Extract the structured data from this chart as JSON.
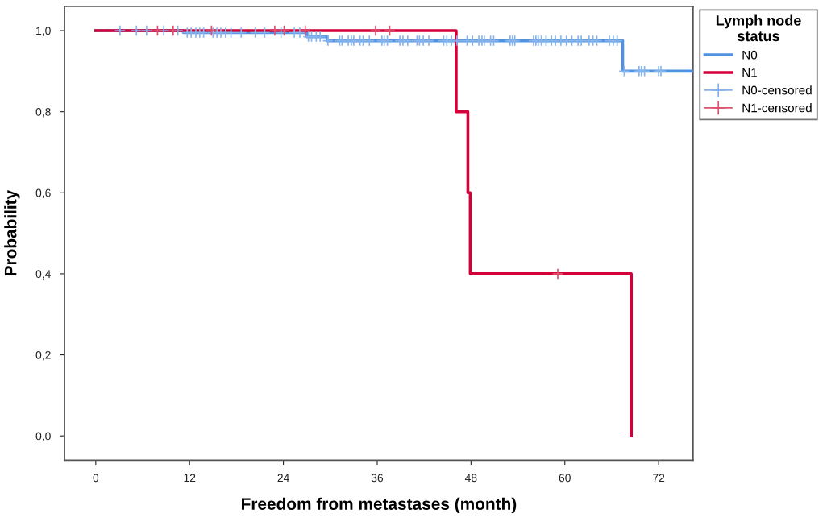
{
  "chart_data": {
    "type": "step",
    "xlabel": "Freedom from metastases (month)",
    "ylabel": "Probability",
    "legend_title": "Lymph node status",
    "xlim": [
      -4,
      76.4
    ],
    "ylim": [
      -0.06,
      1.06
    ],
    "xticks": [
      0,
      12,
      24,
      36,
      48,
      60,
      72
    ],
    "yticks": [
      {
        "value": 0,
        "label": "0,0"
      },
      {
        "value": 0.2,
        "label": "0,2"
      },
      {
        "value": 0.4,
        "label": "0,4"
      },
      {
        "value": 0.6,
        "label": "0,6"
      },
      {
        "value": 0.8,
        "label": "0,8"
      },
      {
        "value": 1,
        "label": "1,0"
      }
    ],
    "grid": false,
    "legend": "right",
    "series": [
      {
        "name": "N0",
        "color": "#5192e0",
        "x": [
          0,
          11.2,
          27,
          29.6,
          67.4,
          76.4
        ],
        "values": [
          1,
          0.995,
          0.985,
          0.975,
          0.9,
          0.9
        ]
      },
      {
        "name": "N1",
        "color": "#d4003a",
        "x": [
          0,
          46.1,
          47.6,
          47.9,
          68.5
        ],
        "values": [
          1,
          0.8,
          0.6,
          0.4,
          0
        ]
      },
      {
        "name": "N0-censored",
        "type": "scatter",
        "marker": "cross",
        "color": "#86b3ea",
        "x": [
          3.1,
          5.2,
          6.5,
          8.7,
          10.5,
          11.7,
          12.2,
          12.8,
          13.3,
          13.8,
          15.0,
          15.5,
          16.0,
          16.6,
          17.3,
          18.6,
          20.4,
          21.6,
          23.7,
          25.4,
          26.1,
          27.2,
          27.6,
          28.2,
          28.7,
          29.7,
          31.2,
          31.5,
          32.3,
          32.7,
          33.0,
          33.8,
          34.2,
          35.0,
          36.6,
          36.9,
          37.3,
          38.9,
          39.3,
          39.9,
          41.1,
          41.4,
          41.9,
          42.6,
          44.5,
          44.9,
          45.5,
          46.2,
          47.5,
          48.2,
          49.0,
          49.4,
          49.7,
          50.5,
          50.9,
          53.0,
          53.3,
          53.6,
          56.0,
          56.3,
          56.6,
          57.0,
          57.6,
          58.3,
          58.8,
          59.5,
          60.2,
          60.9,
          61.7,
          62.1,
          63.1,
          63.6,
          64.1,
          65.7,
          66.2,
          66.7,
          67.6,
          69.5,
          69.8,
          70.2,
          72.0,
          72.3
        ],
        "values": [
          1,
          1,
          1,
          1,
          1,
          0.995,
          0.995,
          0.995,
          0.995,
          0.995,
          0.995,
          0.995,
          0.995,
          0.995,
          0.995,
          0.995,
          0.995,
          0.995,
          0.995,
          0.995,
          0.995,
          0.985,
          0.985,
          0.985,
          0.985,
          0.975,
          0.975,
          0.975,
          0.975,
          0.975,
          0.975,
          0.975,
          0.975,
          0.975,
          0.975,
          0.975,
          0.975,
          0.975,
          0.975,
          0.975,
          0.975,
          0.975,
          0.975,
          0.975,
          0.975,
          0.975,
          0.975,
          0.975,
          0.975,
          0.975,
          0.975,
          0.975,
          0.975,
          0.975,
          0.975,
          0.975,
          0.975,
          0.975,
          0.975,
          0.975,
          0.975,
          0.975,
          0.975,
          0.975,
          0.975,
          0.975,
          0.975,
          0.975,
          0.975,
          0.975,
          0.975,
          0.975,
          0.975,
          0.975,
          0.975,
          0.975,
          0.9,
          0.9,
          0.9,
          0.9,
          0.9,
          0.9
        ]
      },
      {
        "name": "N1-censored",
        "type": "scatter",
        "marker": "cross",
        "color": "#e0506f",
        "x": [
          7.9,
          9.9,
          14.8,
          22.9,
          24.1,
          26.8,
          35.8,
          37.6,
          59.1
        ],
        "values": [
          1,
          1,
          1,
          1,
          1,
          1,
          1,
          1,
          0.4
        ]
      }
    ]
  }
}
